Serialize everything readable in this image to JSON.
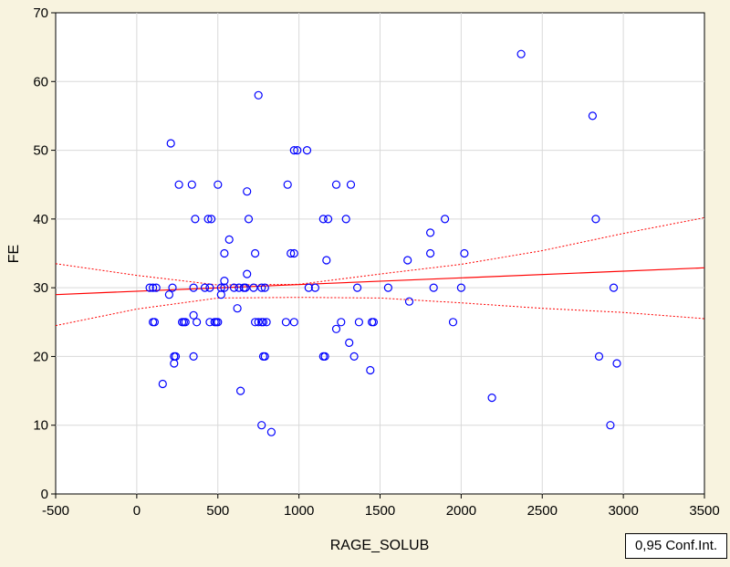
{
  "chart_data": {
    "type": "scatter",
    "xlabel": "RAGE_SOLUB",
    "ylabel": "FE",
    "xlim": [
      -500,
      3500
    ],
    "ylim": [
      0,
      70
    ],
    "x_ticks": [
      "-500",
      "0",
      "500",
      "1000",
      "1500",
      "2000",
      "2500",
      "3000",
      "3500"
    ],
    "y_ticks": [
      "0",
      "10",
      "20",
      "30",
      "40",
      "50",
      "60",
      "70"
    ],
    "grid": true,
    "legend": "0,95 Conf.Int.",
    "legend_position": "bottom-right",
    "colors": {
      "points": "#0000ff",
      "fit_line": "#ff0000",
      "confidence_band": "#ff0000",
      "plot_background": "#ffffff",
      "frame_background": "#f8f3df"
    },
    "fit_line": {
      "x": [
        -500,
        3500
      ],
      "y": [
        29.0,
        32.9
      ]
    },
    "confidence_band": {
      "upper": {
        "x": [
          -500,
          0,
          500,
          1000,
          1500,
          2000,
          2500,
          3000,
          3500
        ],
        "y": [
          33.5,
          31.8,
          30.4,
          30.5,
          32.0,
          33.4,
          35.4,
          37.9,
          40.2
        ]
      },
      "lower": {
        "x": [
          -500,
          0,
          500,
          1000,
          1500,
          2000,
          2500,
          3000,
          3500
        ],
        "y": [
          24.5,
          26.9,
          28.5,
          28.6,
          28.5,
          27.8,
          27.0,
          26.4,
          25.5
        ]
      }
    },
    "points": [
      [
        2370,
        64
      ],
      [
        2810,
        55
      ],
      [
        750,
        58
      ],
      [
        210,
        51
      ],
      [
        970,
        50
      ],
      [
        990,
        50
      ],
      [
        1050,
        50
      ],
      [
        260,
        45
      ],
      [
        340,
        45
      ],
      [
        500,
        45
      ],
      [
        930,
        45
      ],
      [
        1230,
        45
      ],
      [
        1320,
        45
      ],
      [
        680,
        44
      ],
      [
        360,
        40
      ],
      [
        440,
        40
      ],
      [
        460,
        40
      ],
      [
        690,
        40
      ],
      [
        1150,
        40
      ],
      [
        1180,
        40
      ],
      [
        1290,
        40
      ],
      [
        1900,
        40
      ],
      [
        2830,
        40
      ],
      [
        1810,
        38
      ],
      [
        570,
        37
      ],
      [
        540,
        35
      ],
      [
        730,
        35
      ],
      [
        950,
        35
      ],
      [
        970,
        35
      ],
      [
        1810,
        35
      ],
      [
        2020,
        35
      ],
      [
        1170,
        34
      ],
      [
        1670,
        34
      ],
      [
        680,
        32
      ],
      [
        540,
        31
      ],
      [
        80,
        30
      ],
      [
        100,
        30
      ],
      [
        120,
        30
      ],
      [
        220,
        30
      ],
      [
        350,
        30
      ],
      [
        420,
        30
      ],
      [
        450,
        30
      ],
      [
        520,
        30
      ],
      [
        540,
        30
      ],
      [
        600,
        30
      ],
      [
        630,
        30
      ],
      [
        660,
        30
      ],
      [
        670,
        30
      ],
      [
        720,
        30
      ],
      [
        770,
        30
      ],
      [
        790,
        30
      ],
      [
        1060,
        30
      ],
      [
        1100,
        30
      ],
      [
        1360,
        30
      ],
      [
        1550,
        30
      ],
      [
        1830,
        30
      ],
      [
        2000,
        30
      ],
      [
        2940,
        30
      ],
      [
        200,
        29
      ],
      [
        520,
        29
      ],
      [
        1680,
        28
      ],
      [
        620,
        27
      ],
      [
        350,
        26
      ],
      [
        100,
        25
      ],
      [
        110,
        25
      ],
      [
        280,
        25
      ],
      [
        290,
        25
      ],
      [
        300,
        25
      ],
      [
        370,
        25
      ],
      [
        450,
        25
      ],
      [
        480,
        25
      ],
      [
        490,
        25
      ],
      [
        500,
        25
      ],
      [
        730,
        25
      ],
      [
        750,
        25
      ],
      [
        770,
        25
      ],
      [
        780,
        25
      ],
      [
        800,
        25
      ],
      [
        920,
        25
      ],
      [
        970,
        25
      ],
      [
        1260,
        25
      ],
      [
        1370,
        25
      ],
      [
        1450,
        25
      ],
      [
        1460,
        25
      ],
      [
        1950,
        25
      ],
      [
        1230,
        24
      ],
      [
        1310,
        22
      ],
      [
        230,
        20
      ],
      [
        240,
        20
      ],
      [
        350,
        20
      ],
      [
        780,
        20
      ],
      [
        790,
        20
      ],
      [
        1150,
        20
      ],
      [
        1160,
        20
      ],
      [
        1340,
        20
      ],
      [
        2850,
        20
      ],
      [
        230,
        19
      ],
      [
        2960,
        19
      ],
      [
        1440,
        18
      ],
      [
        160,
        16
      ],
      [
        640,
        15
      ],
      [
        2190,
        14
      ],
      [
        770,
        10
      ],
      [
        2920,
        10
      ],
      [
        830,
        9
      ]
    ]
  }
}
